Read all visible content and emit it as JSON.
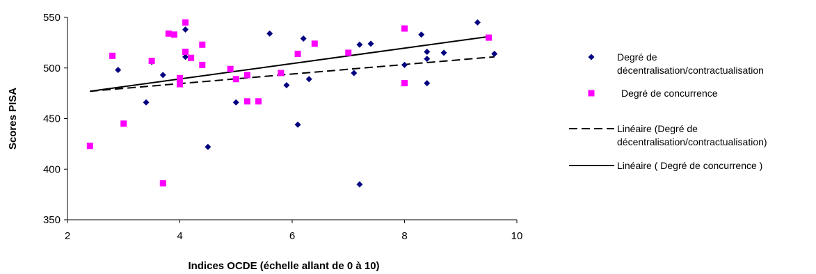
{
  "chart_data": {
    "type": "scatter",
    "xlabel": "Indices OCDE (échelle allant de 0 à 10)",
    "ylabel": "Scores PISA",
    "xlim": [
      2,
      10
    ],
    "ylim": [
      350,
      550
    ],
    "xticks": [
      2,
      4,
      6,
      8,
      10
    ],
    "yticks": [
      350,
      400,
      450,
      500,
      550
    ],
    "grid": false,
    "legend_position": "right",
    "series": [
      {
        "name": "Degré de décentralisation/contractualisation",
        "legend_lines": [
          "Degré de",
          "décentralisation/contractualisation"
        ],
        "marker": "diamond",
        "color": "#000080",
        "points": [
          [
            2.9,
            498
          ],
          [
            3.4,
            466
          ],
          [
            3.5,
            506
          ],
          [
            3.7,
            493
          ],
          [
            4.1,
            538
          ],
          [
            4.1,
            511
          ],
          [
            4.5,
            422
          ],
          [
            5.0,
            466
          ],
          [
            5.6,
            534
          ],
          [
            5.9,
            483
          ],
          [
            6.1,
            444
          ],
          [
            6.2,
            529
          ],
          [
            6.3,
            489
          ],
          [
            7.1,
            495
          ],
          [
            7.2,
            523
          ],
          [
            7.2,
            385
          ],
          [
            7.4,
            524
          ],
          [
            8.0,
            503
          ],
          [
            8.3,
            533
          ],
          [
            8.4,
            516
          ],
          [
            8.4,
            509
          ],
          [
            8.4,
            485
          ],
          [
            8.7,
            515
          ],
          [
            9.3,
            545
          ],
          [
            9.6,
            514
          ]
        ]
      },
      {
        "name": "Degré de concurrence",
        "legend_lines": [
          "Degré de  concurrence"
        ],
        "marker": "square",
        "color": "#FF00FF",
        "points": [
          [
            2.4,
            423
          ],
          [
            2.8,
            512
          ],
          [
            3.0,
            445
          ],
          [
            3.5,
            507
          ],
          [
            3.7,
            386
          ],
          [
            3.8,
            534
          ],
          [
            3.9,
            533
          ],
          [
            4.0,
            490
          ],
          [
            4.0,
            484
          ],
          [
            4.1,
            545
          ],
          [
            4.1,
            516
          ],
          [
            4.2,
            510
          ],
          [
            4.4,
            523
          ],
          [
            4.4,
            503
          ],
          [
            4.9,
            499
          ],
          [
            5.0,
            489
          ],
          [
            5.2,
            493
          ],
          [
            5.2,
            467
          ],
          [
            5.4,
            467
          ],
          [
            5.8,
            495
          ],
          [
            6.1,
            514
          ],
          [
            6.4,
            524
          ],
          [
            7.0,
            515
          ],
          [
            8.0,
            539
          ],
          [
            8.0,
            485
          ],
          [
            9.5,
            530
          ]
        ]
      }
    ],
    "trendlines": [
      {
        "name": "Linéaire (Degré de décentralisation/contractualisation)",
        "legend_lines": [
          "Linéaire (Degré de",
          "décentralisation/contractualisation)"
        ],
        "style": "dashed",
        "color": "#000000",
        "x": [
          2.4,
          9.6
        ],
        "y": [
          477,
          511
        ]
      },
      {
        "name": "Linéaire ( Degré de  concurrence )",
        "legend_lines": [
          "Linéaire ( Degré de  concurrence )"
        ],
        "style": "solid",
        "color": "#000000",
        "x": [
          2.4,
          9.5
        ],
        "y": [
          477,
          531
        ]
      }
    ]
  }
}
